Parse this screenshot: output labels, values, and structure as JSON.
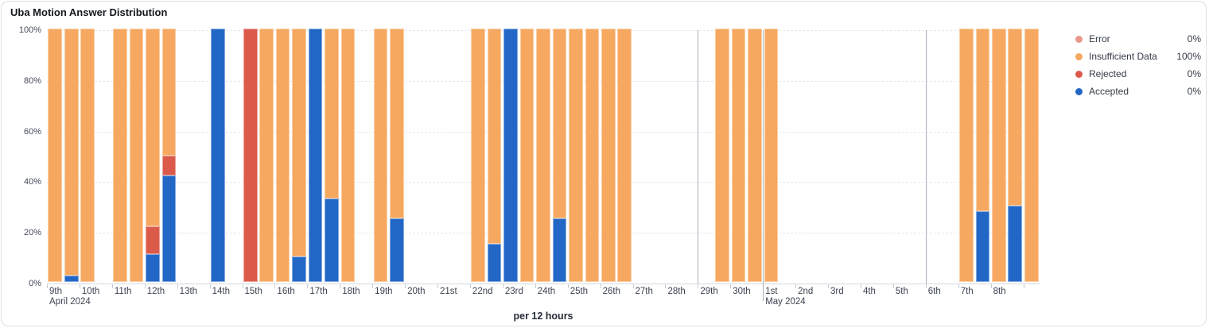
{
  "title": "Uba Motion Answer Distribution",
  "axis": {
    "x_title": "per 12 hours",
    "y_ticks": [
      {
        "label": "100%",
        "pct": 100
      },
      {
        "label": "80%",
        "pct": 80
      },
      {
        "label": "60%",
        "pct": 60
      },
      {
        "label": "40%",
        "pct": 40
      },
      {
        "label": "20%",
        "pct": 20
      },
      {
        "label": "0%",
        "pct": 0
      }
    ],
    "x_days": [
      {
        "label": "9th",
        "sub": "April 2024"
      },
      {
        "label": "10th"
      },
      {
        "label": "11th"
      },
      {
        "label": "12th"
      },
      {
        "label": "13th"
      },
      {
        "label": "14th"
      },
      {
        "label": "15th"
      },
      {
        "label": "16th"
      },
      {
        "label": "17th"
      },
      {
        "label": "18th"
      },
      {
        "label": "19th"
      },
      {
        "label": "20th"
      },
      {
        "label": "21st"
      },
      {
        "label": "22nd"
      },
      {
        "label": "23rd"
      },
      {
        "label": "24th"
      },
      {
        "label": "25th"
      },
      {
        "label": "26th"
      },
      {
        "label": "27th"
      },
      {
        "label": "28th"
      },
      {
        "label": "29th"
      },
      {
        "label": "30th"
      },
      {
        "label": "1st",
        "sub": "May 2024"
      },
      {
        "label": "2nd"
      },
      {
        "label": "3rd"
      },
      {
        "label": "4th"
      },
      {
        "label": "5th"
      },
      {
        "label": "6th"
      },
      {
        "label": "7th"
      },
      {
        "label": "8th"
      },
      {
        "label": ""
      }
    ]
  },
  "legend": [
    {
      "key": "error",
      "label": "Error",
      "value": "0%",
      "color": "#EB988C"
    },
    {
      "key": "insufficient_data",
      "label": "Insufficient Data",
      "value": "100%",
      "color": "#F6A860"
    },
    {
      "key": "rejected",
      "label": "Rejected",
      "value": "0%",
      "color": "#DB5A4A"
    },
    {
      "key": "accepted",
      "label": "Accepted",
      "value": "0%",
      "color": "#2267C6"
    }
  ],
  "chart_data": {
    "type": "bar",
    "subtype": "stacked-percent-time-series",
    "title": "Uba Motion Answer Distribution",
    "xlabel": "per 12 hours",
    "ylabel": "",
    "ylim": [
      0,
      100
    ],
    "grid": "horizontal-dashed",
    "legend_position": "right",
    "bucket_hours": 12,
    "x_start_date": "April 9 2024",
    "x_end_date": "May 9 2024",
    "stack_order_bottom_to_top": [
      "accepted",
      "rejected",
      "insufficient_data",
      "error"
    ],
    "series_colors": {
      "accepted": "#2267C6",
      "rejected": "#DB5A4A",
      "insufficient_data": "#F6A860",
      "error": "#EB988C"
    },
    "markers": {
      "week_line_day_indices": [
        20,
        27
      ],
      "month_line_day_indices": [
        22
      ]
    },
    "bars": [
      {
        "d": 0,
        "h": 0,
        "seg": {
          "insufficient_data": 100
        }
      },
      {
        "d": 0,
        "h": 1,
        "seg": {
          "accepted": 2.5,
          "insufficient_data": 97.5
        }
      },
      {
        "d": 1,
        "h": 0,
        "seg": {
          "insufficient_data": 100
        }
      },
      {
        "d": 2,
        "h": 0,
        "seg": {
          "insufficient_data": 100
        }
      },
      {
        "d": 2,
        "h": 1,
        "seg": {
          "insufficient_data": 100
        }
      },
      {
        "d": 3,
        "h": 0,
        "seg": {
          "accepted": 11,
          "rejected": 11,
          "insufficient_data": 78
        }
      },
      {
        "d": 3,
        "h": 1,
        "seg": {
          "accepted": 42,
          "rejected": 8,
          "insufficient_data": 50
        }
      },
      {
        "d": 5,
        "h": 0,
        "seg": {
          "accepted": 100
        }
      },
      {
        "d": 6,
        "h": 0,
        "seg": {
          "rejected": 100
        }
      },
      {
        "d": 6,
        "h": 1,
        "seg": {
          "insufficient_data": 100
        }
      },
      {
        "d": 7,
        "h": 0,
        "seg": {
          "insufficient_data": 100
        }
      },
      {
        "d": 7,
        "h": 1,
        "seg": {
          "accepted": 10,
          "insufficient_data": 90
        }
      },
      {
        "d": 8,
        "h": 0,
        "seg": {
          "accepted": 100
        }
      },
      {
        "d": 8,
        "h": 1,
        "seg": {
          "accepted": 33,
          "insufficient_data": 67
        }
      },
      {
        "d": 9,
        "h": 0,
        "seg": {
          "insufficient_data": 100
        }
      },
      {
        "d": 10,
        "h": 0,
        "seg": {
          "insufficient_data": 100
        }
      },
      {
        "d": 10,
        "h": 1,
        "seg": {
          "accepted": 25,
          "insufficient_data": 75
        }
      },
      {
        "d": 13,
        "h": 0,
        "seg": {
          "insufficient_data": 100
        }
      },
      {
        "d": 13,
        "h": 1,
        "seg": {
          "accepted": 15,
          "insufficient_data": 85
        }
      },
      {
        "d": 14,
        "h": 0,
        "seg": {
          "accepted": 100
        }
      },
      {
        "d": 14,
        "h": 1,
        "seg": {
          "insufficient_data": 100
        }
      },
      {
        "d": 15,
        "h": 0,
        "seg": {
          "insufficient_data": 100
        }
      },
      {
        "d": 15,
        "h": 1,
        "seg": {
          "accepted": 25,
          "insufficient_data": 75
        }
      },
      {
        "d": 16,
        "h": 0,
        "seg": {
          "insufficient_data": 100
        }
      },
      {
        "d": 16,
        "h": 1,
        "seg": {
          "insufficient_data": 100
        }
      },
      {
        "d": 17,
        "h": 0,
        "seg": {
          "insufficient_data": 100
        }
      },
      {
        "d": 17,
        "h": 1,
        "seg": {
          "insufficient_data": 100
        }
      },
      {
        "d": 20,
        "h": 1,
        "seg": {
          "insufficient_data": 100
        }
      },
      {
        "d": 21,
        "h": 0,
        "seg": {
          "insufficient_data": 100
        }
      },
      {
        "d": 21,
        "h": 1,
        "seg": {
          "insufficient_data": 100
        }
      },
      {
        "d": 22,
        "h": 0,
        "seg": {
          "insufficient_data": 100
        }
      },
      {
        "d": 28,
        "h": 0,
        "seg": {
          "insufficient_data": 100
        }
      },
      {
        "d": 28,
        "h": 1,
        "seg": {
          "accepted": 28,
          "insufficient_data": 72
        }
      },
      {
        "d": 29,
        "h": 0,
        "seg": {
          "insufficient_data": 100
        }
      },
      {
        "d": 29,
        "h": 1,
        "seg": {
          "accepted": 30,
          "insufficient_data": 70
        }
      },
      {
        "d": 30,
        "h": 0,
        "seg": {
          "insufficient_data": 100
        }
      }
    ]
  }
}
